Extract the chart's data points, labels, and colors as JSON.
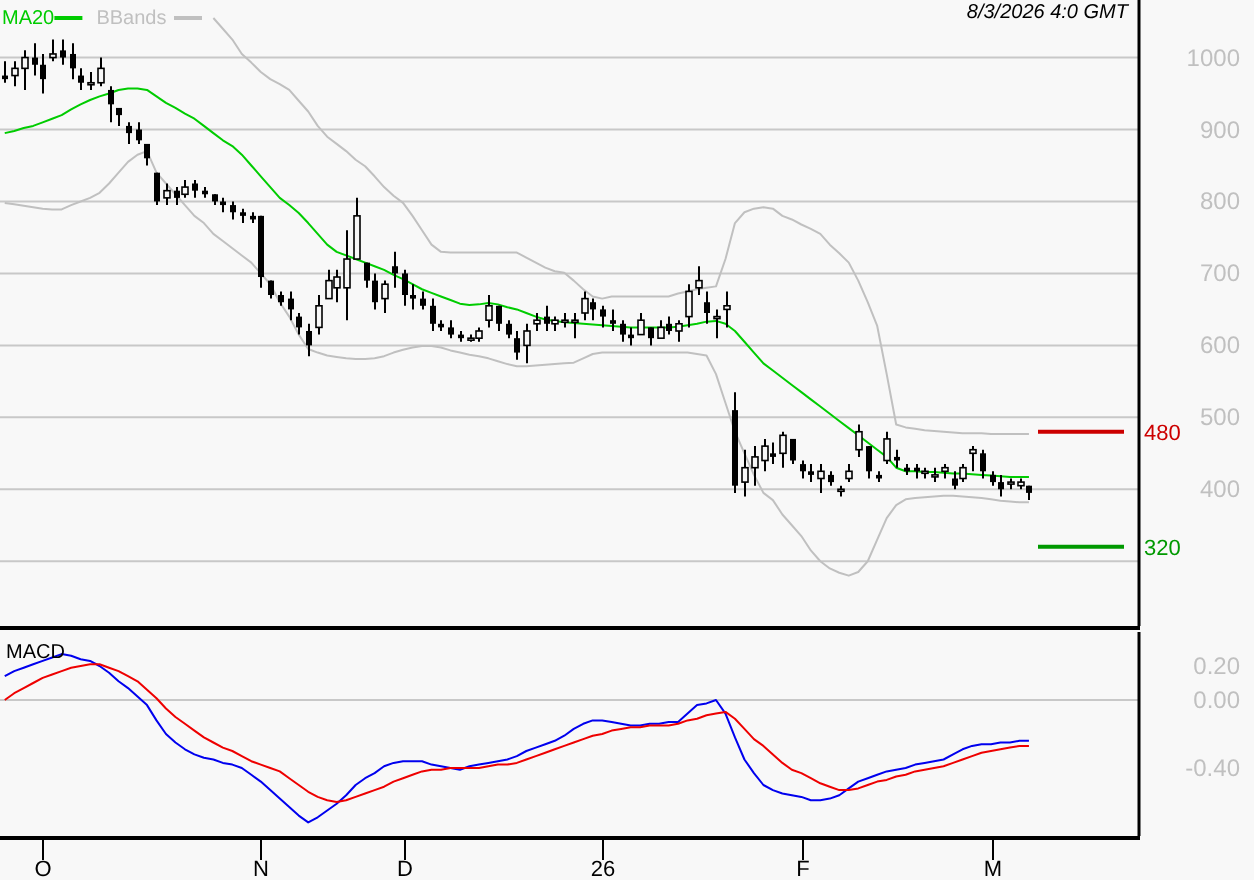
{
  "chart_data": [
    {
      "type": "candlestick",
      "annotations": [
        "8/3/2026 4:0 GMT"
      ],
      "legend": "top left",
      "grid": "y",
      "tick_labels": "y",
      "categories": [
        null,
        null,
        null,
        null,
        null,
        null,
        null,
        null,
        null,
        null,
        null,
        null,
        null,
        null,
        null,
        null,
        null,
        null,
        null,
        null,
        null,
        null,
        null,
        null,
        null,
        null,
        null,
        null,
        null,
        null,
        null,
        null,
        null,
        null,
        null,
        null,
        null,
        null,
        null,
        null,
        null,
        null,
        null,
        null,
        null,
        null,
        null,
        null,
        null,
        null,
        null,
        null,
        null,
        null,
        null,
        null,
        null,
        null,
        null,
        null,
        null,
        null,
        null,
        null,
        null,
        null,
        null,
        null,
        null,
        null,
        null,
        null,
        null,
        null,
        null,
        null,
        null,
        null,
        null,
        null,
        null,
        null,
        null,
        null,
        null,
        null,
        null,
        null,
        null,
        null,
        null,
        null,
        null,
        null,
        null,
        null,
        null,
        null,
        null,
        null,
        null,
        null,
        null,
        null,
        null,
        null,
        null,
        null,
        null,
        null,
        null,
        null,
        null,
        null,
        null,
        null,
        null,
        null,
        null,
        null
      ],
      "ylim": [
        210,
        1080
      ],
      "yticks": [
        1000,
        900,
        800,
        700,
        600,
        500,
        400,
        {
          "value": 300,
          "label": null
        }
      ],
      "ref_lines": [
        {
          "axis": "y",
          "value": 480,
          "label": "480",
          "color": "#cc0000"
        },
        {
          "axis": "y",
          "value": 320,
          "label": "320",
          "color": "#009900"
        }
      ],
      "ohlc": [
        [
          975,
          995,
          965,
          970
        ],
        [
          975,
          995,
          960,
          985
        ],
        [
          985,
          1010,
          955,
          1000
        ],
        [
          1000,
          1020,
          975,
          990
        ],
        [
          990,
          1005,
          950,
          970
        ],
        [
          1000,
          1025,
          995,
          1005
        ],
        [
          1010,
          1025,
          990,
          1000
        ],
        [
          1005,
          1020,
          970,
          985
        ],
        [
          975,
          985,
          955,
          965
        ],
        [
          965,
          980,
          955,
          965
        ],
        [
          965,
          1000,
          960,
          985
        ],
        [
          955,
          960,
          910,
          935
        ],
        [
          930,
          930,
          905,
          920
        ],
        [
          905,
          910,
          880,
          895
        ],
        [
          900,
          910,
          880,
          885
        ],
        [
          880,
          880,
          850,
          860
        ],
        [
          840,
          840,
          795,
          800
        ],
        [
          805,
          825,
          795,
          815
        ],
        [
          815,
          820,
          795,
          805
        ],
        [
          810,
          830,
          805,
          820
        ],
        [
          825,
          830,
          805,
          815
        ],
        [
          815,
          820,
          805,
          810
        ],
        [
          810,
          810,
          795,
          800
        ],
        [
          800,
          805,
          785,
          795
        ],
        [
          795,
          800,
          775,
          785
        ],
        [
          785,
          790,
          770,
          780
        ],
        [
          780,
          785,
          770,
          775
        ],
        [
          780,
          780,
          680,
          695
        ],
        [
          690,
          690,
          665,
          670
        ],
        [
          670,
          675,
          655,
          660
        ],
        [
          665,
          675,
          635,
          650
        ],
        [
          640,
          645,
          615,
          625
        ],
        [
          620,
          630,
          585,
          600
        ],
        [
          625,
          670,
          615,
          655
        ],
        [
          665,
          705,
          665,
          690
        ],
        [
          680,
          705,
          660,
          695
        ],
        [
          680,
          760,
          635,
          720
        ],
        [
          720,
          805,
          720,
          780
        ],
        [
          715,
          715,
          680,
          690
        ],
        [
          690,
          700,
          650,
          660
        ],
        [
          665,
          690,
          645,
          685
        ],
        [
          710,
          730,
          680,
          700
        ],
        [
          700,
          705,
          655,
          670
        ],
        [
          670,
          685,
          650,
          665
        ],
        [
          665,
          675,
          650,
          655
        ],
        [
          655,
          665,
          620,
          630
        ],
        [
          630,
          635,
          620,
          625
        ],
        [
          625,
          635,
          610,
          615
        ],
        [
          615,
          620,
          605,
          610
        ],
        [
          610,
          615,
          605,
          610
        ],
        [
          610,
          625,
          605,
          620
        ],
        [
          635,
          670,
          625,
          655
        ],
        [
          655,
          655,
          620,
          630
        ],
        [
          630,
          635,
          610,
          615
        ],
        [
          610,
          620,
          580,
          590
        ],
        [
          600,
          630,
          575,
          620
        ],
        [
          630,
          645,
          620,
          635
        ],
        [
          640,
          655,
          620,
          630
        ],
        [
          630,
          640,
          620,
          635
        ],
        [
          635,
          645,
          625,
          635
        ],
        [
          635,
          645,
          610,
          635
        ],
        [
          645,
          675,
          635,
          665
        ],
        [
          660,
          665,
          635,
          650
        ],
        [
          650,
          655,
          625,
          640
        ],
        [
          635,
          650,
          620,
          630
        ],
        [
          630,
          635,
          605,
          615
        ],
        [
          615,
          625,
          600,
          610
        ],
        [
          615,
          645,
          615,
          635
        ],
        [
          625,
          625,
          600,
          610
        ],
        [
          610,
          635,
          610,
          625
        ],
        [
          630,
          640,
          615,
          620
        ],
        [
          620,
          635,
          605,
          630
        ],
        [
          640,
          685,
          625,
          675
        ],
        [
          680,
          710,
          670,
          690
        ],
        [
          660,
          675,
          630,
          645
        ],
        [
          640,
          650,
          610,
          640
        ],
        [
          650,
          675,
          625,
          655
        ],
        [
          510,
          535,
          395,
          405
        ],
        [
          410,
          455,
          390,
          430
        ],
        [
          430,
          460,
          405,
          445
        ],
        [
          440,
          470,
          425,
          460
        ],
        [
          450,
          465,
          435,
          445
        ],
        [
          450,
          480,
          430,
          475
        ],
        [
          470,
          470,
          435,
          440
        ],
        [
          435,
          440,
          415,
          425
        ],
        [
          425,
          435,
          410,
          420
        ],
        [
          415,
          435,
          395,
          425
        ],
        [
          420,
          425,
          405,
          410
        ],
        [
          400,
          405,
          390,
          400
        ],
        [
          415,
          435,
          410,
          425
        ],
        [
          455,
          490,
          445,
          480
        ],
        [
          460,
          460,
          415,
          425
        ],
        [
          420,
          425,
          410,
          415
        ],
        [
          440,
          480,
          435,
          470
        ],
        [
          445,
          455,
          430,
          440
        ],
        [
          430,
          435,
          420,
          425
        ],
        [
          430,
          435,
          415,
          425
        ],
        [
          425,
          430,
          415,
          425
        ],
        [
          420,
          430,
          410,
          420
        ],
        [
          425,
          435,
          415,
          430
        ],
        [
          415,
          425,
          400,
          405
        ],
        [
          415,
          435,
          410,
          430
        ],
        [
          450,
          460,
          425,
          455
        ],
        [
          450,
          455,
          415,
          425
        ],
        [
          420,
          425,
          405,
          410
        ],
        [
          410,
          420,
          390,
          400
        ],
        [
          410,
          415,
          400,
          410
        ],
        [
          405,
          415,
          400,
          410
        ],
        [
          405,
          405,
          385,
          395
        ],
        null,
        null,
        null,
        null,
        null,
        null,
        null,
        null,
        null,
        null,
        null
      ],
      "series": [
        {
          "name": "MA20",
          "type": "line",
          "color": "#00cc00",
          "values": [
            895,
            898,
            902,
            905,
            910,
            915,
            920,
            928,
            935,
            941,
            946,
            950,
            955,
            957,
            957,
            955,
            946,
            937,
            930,
            922,
            915,
            905,
            895,
            885,
            877,
            865,
            850,
            835,
            820,
            805,
            795,
            784,
            770,
            755,
            740,
            730,
            725,
            720,
            715,
            710,
            705,
            698,
            692,
            685,
            678,
            673,
            668,
            663,
            658,
            656,
            657,
            659,
            657,
            653,
            650,
            645,
            640,
            636,
            634,
            632,
            631,
            630,
            629,
            628,
            627,
            626,
            625,
            625,
            625,
            625,
            625,
            626,
            628,
            630,
            633,
            634,
            630,
            620,
            605,
            590,
            575,
            565,
            555,
            545,
            535,
            525,
            515,
            505,
            495,
            485,
            475,
            465,
            455,
            445,
            430,
            425,
            425,
            424,
            424,
            423,
            422,
            422,
            421,
            420,
            419,
            418,
            417,
            417,
            417,
            null,
            null,
            null,
            null,
            null,
            null,
            null,
            null,
            null,
            null,
            null
          ]
        },
        {
          "name": "BBands",
          "type": "line",
          "color": "#c0c0c0",
          "values": [
            null,
            null,
            null,
            null,
            null,
            null,
            null,
            null,
            null,
            null,
            null,
            null,
            null,
            null,
            null,
            null,
            null,
            null,
            null,
            null,
            null,
            null,
            1055,
            1040,
            1025,
            1005,
            993,
            980,
            970,
            963,
            955,
            940,
            925,
            905,
            890,
            880,
            870,
            858,
            849,
            835,
            820,
            808,
            798,
            780,
            760,
            740,
            730,
            729,
            729,
            729,
            729,
            729,
            729,
            729,
            729,
            722,
            715,
            708,
            703,
            701,
            690,
            678,
            668,
            665,
            668,
            668,
            668,
            668,
            668,
            668,
            668,
            672,
            675,
            678,
            680,
            682,
            720,
            770,
            785,
            790,
            792,
            790,
            780,
            775,
            768,
            762,
            755,
            740,
            728,
            715,
            690,
            660,
            627,
            560,
            490,
            486,
            484,
            482,
            481,
            480,
            479,
            478,
            478,
            478,
            477,
            477,
            477,
            477,
            477,
            null,
            null,
            null,
            null,
            null,
            null,
            null,
            null,
            null,
            null,
            null
          ]
        },
        {
          "type": "line",
          "color": "#c0c0c0",
          "values": [
            798,
            796,
            794,
            792,
            790,
            789,
            789,
            795,
            800,
            805,
            812,
            825,
            840,
            855,
            865,
            870,
            840,
            825,
            810,
            795,
            780,
            770,
            755,
            745,
            735,
            725,
            715,
            700,
            685,
            660,
            640,
            615,
            595,
            590,
            586,
            584,
            582,
            581,
            581,
            582,
            585,
            590,
            594,
            597,
            599,
            599,
            597,
            593,
            590,
            587,
            585,
            582,
            578,
            574,
            571,
            571,
            572,
            573,
            574,
            575,
            576,
            582,
            588,
            590,
            590,
            590,
            590,
            590,
            590,
            590,
            590,
            590,
            590,
            588,
            586,
            560,
            520,
            480,
            450,
            420,
            395,
            385,
            365,
            350,
            335,
            315,
            300,
            290,
            284,
            280,
            285,
            300,
            330,
            360,
            378,
            386,
            388,
            389,
            390,
            391,
            391,
            390,
            389,
            388,
            386,
            384,
            383,
            382,
            382,
            null,
            null,
            null,
            null,
            null,
            null,
            null,
            null,
            null,
            null,
            null
          ]
        }
      ]
    },
    {
      "type": "line",
      "title": "MACD",
      "categories": [
        null,
        null,
        null,
        null,
        "O",
        null,
        null,
        null,
        null,
        null,
        null,
        null,
        null,
        null,
        null,
        null,
        null,
        null,
        null,
        null,
        null,
        null,
        null,
        null,
        null,
        null,
        null,
        "N",
        null,
        null,
        null,
        null,
        null,
        null,
        null,
        null,
        null,
        null,
        null,
        null,
        null,
        null,
        "D",
        null,
        null,
        null,
        null,
        null,
        null,
        null,
        null,
        null,
        null,
        null,
        null,
        null,
        null,
        null,
        null,
        null,
        null,
        null,
        null,
        "26",
        null,
        null,
        null,
        null,
        null,
        null,
        null,
        null,
        null,
        null,
        null,
        null,
        null,
        null,
        null,
        null,
        null,
        null,
        null,
        null,
        "F",
        null,
        null,
        null,
        null,
        null,
        null,
        null,
        null,
        null,
        null,
        null,
        null,
        null,
        null,
        null,
        null,
        null,
        null,
        null,
        "M",
        null,
        null,
        null,
        null,
        null,
        null,
        null,
        null,
        null,
        null,
        null,
        null,
        null,
        null,
        null
      ],
      "ylim": [
        -0.8,
        0.4
      ],
      "yticks": [
        {
          "value": 0.2,
          "label": "0.20"
        },
        {
          "value": 0,
          "label": "0.00"
        },
        {
          "value": -0.4,
          "label": "-0.40"
        }
      ],
      "ref_lines": [
        {
          "axis": "y",
          "value": 0,
          "color": "#c8c8c8"
        }
      ],
      "series": [
        {
          "color": "#0000ee",
          "values": [
            0.14,
            0.17,
            0.19,
            0.21,
            0.23,
            0.25,
            0.27,
            0.26,
            0.24,
            0.23,
            0.2,
            0.16,
            0.11,
            0.07,
            0.02,
            -0.03,
            -0.12,
            -0.2,
            -0.25,
            -0.29,
            -0.32,
            -0.34,
            -0.35,
            -0.37,
            -0.38,
            -0.4,
            -0.44,
            -0.48,
            -0.53,
            -0.58,
            -0.63,
            -0.68,
            -0.72,
            -0.69,
            -0.65,
            -0.61,
            -0.56,
            -0.5,
            -0.46,
            -0.43,
            -0.39,
            -0.37,
            -0.36,
            -0.36,
            -0.36,
            -0.38,
            -0.39,
            -0.4,
            -0.41,
            -0.39,
            -0.38,
            -0.37,
            -0.36,
            -0.35,
            -0.33,
            -0.3,
            -0.28,
            -0.26,
            -0.24,
            -0.21,
            -0.17,
            -0.14,
            -0.12,
            -0.12,
            -0.13,
            -0.14,
            -0.15,
            -0.15,
            -0.14,
            -0.14,
            -0.13,
            -0.13,
            -0.08,
            -0.03,
            -0.02,
            0.0,
            -0.08,
            -0.22,
            -0.35,
            -0.43,
            -0.5,
            -0.53,
            -0.55,
            -0.56,
            -0.57,
            -0.59,
            -0.59,
            -0.58,
            -0.56,
            -0.52,
            -0.48,
            -0.46,
            -0.44,
            -0.42,
            -0.41,
            -0.4,
            -0.38,
            -0.37,
            -0.36,
            -0.35,
            -0.32,
            -0.29,
            -0.27,
            -0.26,
            -0.26,
            -0.25,
            -0.25,
            -0.24,
            -0.24,
            null,
            null,
            null,
            null,
            null,
            null,
            null,
            null,
            null,
            null,
            null
          ]
        },
        {
          "color": "#ee0000",
          "values": [
            0.0,
            0.04,
            0.07,
            0.1,
            0.13,
            0.15,
            0.17,
            0.19,
            0.2,
            0.21,
            0.21,
            0.19,
            0.17,
            0.14,
            0.11,
            0.06,
            0.01,
            -0.05,
            -0.1,
            -0.14,
            -0.18,
            -0.22,
            -0.25,
            -0.28,
            -0.3,
            -0.33,
            -0.36,
            -0.38,
            -0.4,
            -0.42,
            -0.46,
            -0.5,
            -0.54,
            -0.57,
            -0.59,
            -0.6,
            -0.59,
            -0.57,
            -0.55,
            -0.53,
            -0.51,
            -0.48,
            -0.46,
            -0.44,
            -0.42,
            -0.41,
            -0.41,
            -0.4,
            -0.4,
            -0.4,
            -0.4,
            -0.39,
            -0.38,
            -0.38,
            -0.37,
            -0.35,
            -0.33,
            -0.31,
            -0.29,
            -0.27,
            -0.25,
            -0.23,
            -0.21,
            -0.2,
            -0.18,
            -0.17,
            -0.16,
            -0.16,
            -0.15,
            -0.15,
            -0.15,
            -0.14,
            -0.12,
            -0.11,
            -0.09,
            -0.08,
            -0.07,
            -0.11,
            -0.17,
            -0.23,
            -0.27,
            -0.32,
            -0.37,
            -0.41,
            -0.43,
            -0.46,
            -0.49,
            -0.51,
            -0.53,
            -0.53,
            -0.52,
            -0.5,
            -0.48,
            -0.47,
            -0.45,
            -0.44,
            -0.42,
            -0.41,
            -0.4,
            -0.39,
            -0.37,
            -0.35,
            -0.33,
            -0.31,
            -0.3,
            -0.29,
            -0.28,
            -0.27,
            -0.27,
            null,
            null,
            null,
            null,
            null,
            null,
            null,
            null,
            null,
            null,
            null
          ]
        }
      ]
    }
  ]
}
